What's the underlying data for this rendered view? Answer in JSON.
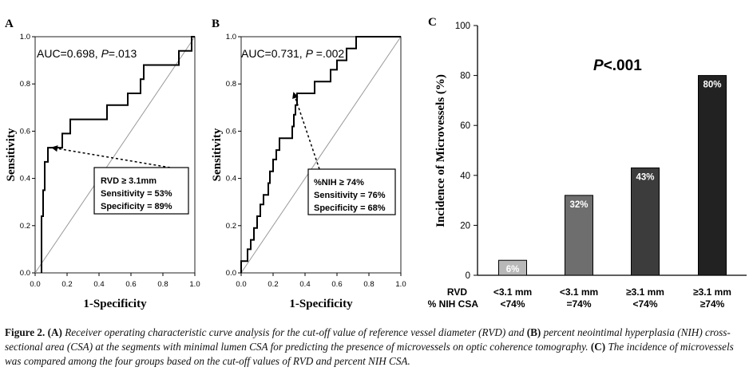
{
  "chart_data": [
    {
      "panel": "A",
      "type": "line",
      "xlabel": "1-Specificity",
      "ylabel": "Sensitivity",
      "xlim": [
        0,
        1
      ],
      "ylim": [
        0,
        1
      ],
      "xticks": [
        "0.0",
        "0.2",
        "0.4",
        "0.6",
        "0.8",
        "1.0"
      ],
      "yticks": [
        "0.0",
        "0.2",
        "0.4",
        "0.6",
        "0.8",
        "1.0"
      ],
      "auc_label": "AUC=0.698, ",
      "p_italic": "P",
      "p_value": "=.013",
      "roc": [
        [
          0.04,
          0
        ],
        [
          0.04,
          0.12
        ],
        [
          0.04,
          0.24
        ],
        [
          0.05,
          0.24
        ],
        [
          0.05,
          0.35
        ],
        [
          0.06,
          0.35
        ],
        [
          0.06,
          0.47
        ],
        [
          0.08,
          0.47
        ],
        [
          0.08,
          0.53
        ],
        [
          0.17,
          0.53
        ],
        [
          0.17,
          0.59
        ],
        [
          0.22,
          0.59
        ],
        [
          0.22,
          0.65
        ],
        [
          0.45,
          0.65
        ],
        [
          0.45,
          0.71
        ],
        [
          0.58,
          0.71
        ],
        [
          0.58,
          0.76
        ],
        [
          0.66,
          0.76
        ],
        [
          0.66,
          0.82
        ],
        [
          0.68,
          0.82
        ],
        [
          0.68,
          0.88
        ],
        [
          0.9,
          0.88
        ],
        [
          0.9,
          0.94
        ],
        [
          0.98,
          0.94
        ],
        [
          0.98,
          1.0
        ],
        [
          1.0,
          1.0
        ]
      ],
      "cutoff_point": [
        0.11,
        0.53
      ],
      "annotation": [
        "RVD ≥ 3.1mm",
        "Sensitivity = 53%",
        "Specificity = 89%"
      ]
    },
    {
      "panel": "B",
      "type": "line",
      "xlabel": "1-Specificity",
      "ylabel": "Sensitivity",
      "xlim": [
        0,
        1
      ],
      "ylim": [
        0,
        1
      ],
      "xticks": [
        "0.0",
        "0.2",
        "0.4",
        "0.6",
        "0.8",
        "1.0"
      ],
      "yticks": [
        "0.0",
        "0.2",
        "0.4",
        "0.6",
        "0.8",
        "1.0"
      ],
      "auc_label": "AUC=0.731, ",
      "p_italic": "P",
      "p_value": " =.002",
      "roc": [
        [
          0,
          0
        ],
        [
          0,
          0.05
        ],
        [
          0.04,
          0.05
        ],
        [
          0.04,
          0.1
        ],
        [
          0.06,
          0.1
        ],
        [
          0.06,
          0.14
        ],
        [
          0.08,
          0.14
        ],
        [
          0.08,
          0.19
        ],
        [
          0.1,
          0.19
        ],
        [
          0.1,
          0.24
        ],
        [
          0.12,
          0.24
        ],
        [
          0.12,
          0.29
        ],
        [
          0.14,
          0.29
        ],
        [
          0.14,
          0.33
        ],
        [
          0.17,
          0.33
        ],
        [
          0.17,
          0.38
        ],
        [
          0.18,
          0.38
        ],
        [
          0.18,
          0.43
        ],
        [
          0.2,
          0.43
        ],
        [
          0.2,
          0.48
        ],
        [
          0.22,
          0.48
        ],
        [
          0.22,
          0.52
        ],
        [
          0.24,
          0.52
        ],
        [
          0.24,
          0.57
        ],
        [
          0.32,
          0.57
        ],
        [
          0.32,
          0.62
        ],
        [
          0.33,
          0.62
        ],
        [
          0.33,
          0.67
        ],
        [
          0.34,
          0.67
        ],
        [
          0.34,
          0.71
        ],
        [
          0.35,
          0.71
        ],
        [
          0.35,
          0.76
        ],
        [
          0.46,
          0.76
        ],
        [
          0.46,
          0.81
        ],
        [
          0.56,
          0.81
        ],
        [
          0.56,
          0.86
        ],
        [
          0.6,
          0.86
        ],
        [
          0.6,
          0.9
        ],
        [
          0.66,
          0.9
        ],
        [
          0.66,
          0.95
        ],
        [
          0.72,
          0.95
        ],
        [
          0.72,
          1.0
        ],
        [
          1.0,
          1.0
        ]
      ],
      "cutoff_point": [
        0.33,
        0.76
      ],
      "annotation": [
        "%NIH ≥ 74%",
        "Sensitivity = 76%",
        "Specificity = 68%"
      ]
    },
    {
      "panel": "C",
      "type": "bar",
      "ylabel": "Incidence of Microvessels (%)",
      "ylim": [
        0,
        100
      ],
      "yticks": [
        "0",
        "20",
        "40",
        "60",
        "80",
        "100"
      ],
      "p_italic": "P",
      "p_value": "<.001",
      "row_labels": [
        "RVD",
        "% NIH CSA"
      ],
      "categories": [
        {
          "rvd": "<3.1 mm",
          "nih": "<74%"
        },
        {
          "rvd": "<3.1 mm",
          "nih": "=74%"
        },
        {
          "rvd": "≥3.1 mm",
          "nih": "<74%"
        },
        {
          "rvd": "≥3.1 mm",
          "nih": "≥74%"
        }
      ],
      "values": [
        6,
        32,
        43,
        80
      ],
      "value_labels": [
        "6%",
        "32%",
        "43%",
        "80%"
      ],
      "colors": [
        "#b8b8b8",
        "#6e6e6e",
        "#3c3c3c",
        "#222222"
      ]
    }
  ],
  "caption": {
    "label": "Figure 2.",
    "pA": "(A)",
    "tA": " Receiver operating characteristic curve analysis for the cut-off value of reference vessel diameter (RVD) and ",
    "pB": "(B)",
    "tB": " percent neointimal hyperplasia (NIH) cross-sectional area (CSA) at the segments with minimal lumen CSA for predicting the presence of microvessels on optic coherence tomography. ",
    "pC": "(C)",
    "tC": " The incidence of microvessels was compared among the four groups based on the cut-off values of RVD and percent NIH CSA."
  }
}
